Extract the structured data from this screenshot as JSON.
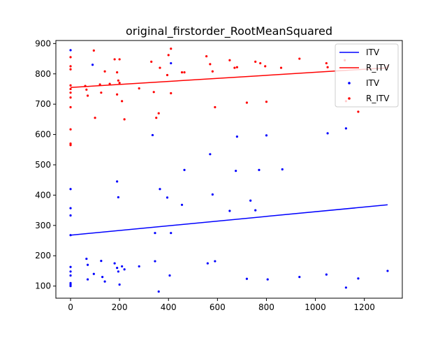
{
  "chart_data": {
    "type": "scatter",
    "title": "original_firstorder_RootMeanSquared",
    "xlabel": "",
    "ylabel": "",
    "xlim": [
      -60,
      1355
    ],
    "ylim": [
      60,
      910
    ],
    "xticks": [
      0,
      200,
      400,
      600,
      800,
      1000,
      1200
    ],
    "yticks": [
      100,
      200,
      300,
      400,
      500,
      600,
      700,
      800,
      900
    ],
    "grid": false,
    "legend_position": "top-right",
    "colors": {
      "itv": "#0000ff",
      "r_itv": "#ff0000"
    },
    "legend": [
      {
        "label": "ITV",
        "kind": "line",
        "color": "#0000ff"
      },
      {
        "label": "R_ITV",
        "kind": "line",
        "color": "#ff0000"
      },
      {
        "label": "ITV",
        "kind": "marker",
        "color": "#0000ff"
      },
      {
        "label": "R_ITV",
        "kind": "marker",
        "color": "#ff0000"
      }
    ],
    "fit_lines": [
      {
        "name": "ITV",
        "color": "#0000ff",
        "x": [
          0,
          1295
        ],
        "y": [
          268,
          368
        ]
      },
      {
        "name": "R_ITV",
        "color": "#ff0000",
        "x": [
          0,
          1295
        ],
        "y": [
          755,
          820
        ]
      }
    ],
    "series": [
      {
        "name": "ITV",
        "color": "#0000ff",
        "points": [
          [
            0,
            878
          ],
          [
            0,
            420
          ],
          [
            0,
            357
          ],
          [
            0,
            333
          ],
          [
            0,
            268
          ],
          [
            0,
            163
          ],
          [
            0,
            148
          ],
          [
            0,
            135
          ],
          [
            0,
            110
          ],
          [
            0,
            105
          ],
          [
            0,
            100
          ],
          [
            90,
            830
          ],
          [
            65,
            190
          ],
          [
            70,
            170
          ],
          [
            70,
            122
          ],
          [
            95,
            140
          ],
          [
            125,
            183
          ],
          [
            130,
            130
          ],
          [
            140,
            115
          ],
          [
            180,
            175
          ],
          [
            190,
            160
          ],
          [
            190,
            445
          ],
          [
            195,
            393
          ],
          [
            195,
            148
          ],
          [
            200,
            105
          ],
          [
            210,
            165
          ],
          [
            220,
            155
          ],
          [
            280,
            165
          ],
          [
            335,
            598
          ],
          [
            345,
            275
          ],
          [
            345,
            182
          ],
          [
            360,
            82
          ],
          [
            365,
            420
          ],
          [
            395,
            392
          ],
          [
            405,
            135
          ],
          [
            410,
            275
          ],
          [
            410,
            835
          ],
          [
            455,
            368
          ],
          [
            465,
            483
          ],
          [
            560,
            175
          ],
          [
            570,
            535
          ],
          [
            580,
            402
          ],
          [
            590,
            182
          ],
          [
            650,
            348
          ],
          [
            675,
            480
          ],
          [
            680,
            593
          ],
          [
            720,
            124
          ],
          [
            735,
            382
          ],
          [
            755,
            350
          ],
          [
            770,
            483
          ],
          [
            800,
            597
          ],
          [
            805,
            122
          ],
          [
            865,
            485
          ],
          [
            935,
            130
          ],
          [
            1045,
            138
          ],
          [
            1050,
            604
          ],
          [
            1125,
            620
          ],
          [
            1125,
            95
          ],
          [
            1175,
            125
          ],
          [
            1295,
            150
          ]
        ]
      },
      {
        "name": "R_ITV",
        "color": "#ff0000",
        "points": [
          [
            0,
            855
          ],
          [
            0,
            825
          ],
          [
            0,
            815
          ],
          [
            0,
            762
          ],
          [
            0,
            750
          ],
          [
            0,
            738
          ],
          [
            0,
            722
          ],
          [
            0,
            690
          ],
          [
            0,
            617
          ],
          [
            0,
            570
          ],
          [
            0,
            565
          ],
          [
            60,
            760
          ],
          [
            65,
            748
          ],
          [
            70,
            728
          ],
          [
            95,
            877
          ],
          [
            100,
            655
          ],
          [
            120,
            765
          ],
          [
            125,
            738
          ],
          [
            140,
            808
          ],
          [
            160,
            767
          ],
          [
            180,
            848
          ],
          [
            190,
            805
          ],
          [
            190,
            732
          ],
          [
            195,
            778
          ],
          [
            200,
            770
          ],
          [
            200,
            848
          ],
          [
            210,
            710
          ],
          [
            220,
            650
          ],
          [
            280,
            752
          ],
          [
            330,
            840
          ],
          [
            340,
            740
          ],
          [
            350,
            655
          ],
          [
            360,
            670
          ],
          [
            365,
            820
          ],
          [
            395,
            796
          ],
          [
            400,
            862
          ],
          [
            410,
            883
          ],
          [
            410,
            736
          ],
          [
            455,
            805
          ],
          [
            465,
            805
          ],
          [
            555,
            858
          ],
          [
            570,
            832
          ],
          [
            580,
            808
          ],
          [
            590,
            690
          ],
          [
            650,
            845
          ],
          [
            670,
            820
          ],
          [
            680,
            822
          ],
          [
            720,
            705
          ],
          [
            755,
            840
          ],
          [
            775,
            835
          ],
          [
            795,
            825
          ],
          [
            800,
            708
          ],
          [
            860,
            820
          ],
          [
            935,
            850
          ],
          [
            1045,
            835
          ],
          [
            1050,
            822
          ],
          [
            1120,
            845
          ],
          [
            1125,
            710
          ],
          [
            1175,
            675
          ],
          [
            1295,
            825
          ]
        ]
      }
    ]
  }
}
